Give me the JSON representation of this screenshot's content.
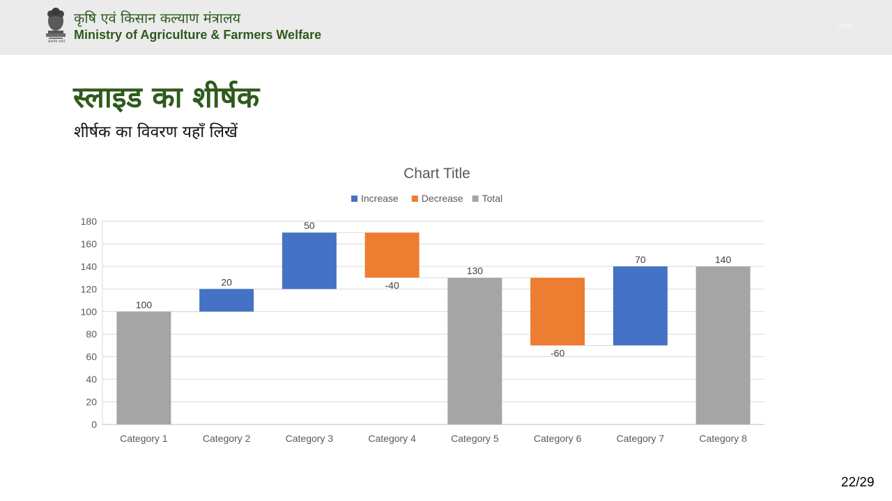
{
  "header": {
    "ministry_hindi": "कृषि एवं किसान कल्याण मंत्रालय",
    "ministry_english": "Ministry of Agriculture & Farmers Welfare",
    "emblem_caption": "सत्यमेव जयते",
    "logo_text": "LOGO"
  },
  "slide": {
    "title": "स्लाइड का शीर्षक",
    "subtitle": "शीर्षक का विवरण यहाँ लिखें",
    "page_number": "22/29"
  },
  "colors": {
    "increase": "#4472C4",
    "decrease": "#ED7D31",
    "total": "#A5A5A5",
    "title_green": "#2E5A1C"
  },
  "chart_data": {
    "type": "bar",
    "subtype": "waterfall",
    "title": "Chart Title",
    "legend": [
      "Increase",
      "Decrease",
      "Total"
    ],
    "legend_position": "top",
    "categories": [
      "Category 1",
      "Category 2",
      "Category 3",
      "Category 4",
      "Category 5",
      "Category 6",
      "Category 7",
      "Category 8"
    ],
    "values": [
      100,
      20,
      50,
      -40,
      130,
      -60,
      70,
      140
    ],
    "kinds": [
      "Total",
      "Increase",
      "Increase",
      "Decrease",
      "Total",
      "Decrease",
      "Increase",
      "Total"
    ],
    "data_labels": [
      "100",
      "20",
      "50",
      "-40",
      "130",
      "-60",
      "70",
      "140"
    ],
    "ylim": [
      0,
      180
    ],
    "yticks": [
      0,
      20,
      40,
      60,
      80,
      100,
      120,
      140,
      160,
      180
    ],
    "grid": true
  }
}
